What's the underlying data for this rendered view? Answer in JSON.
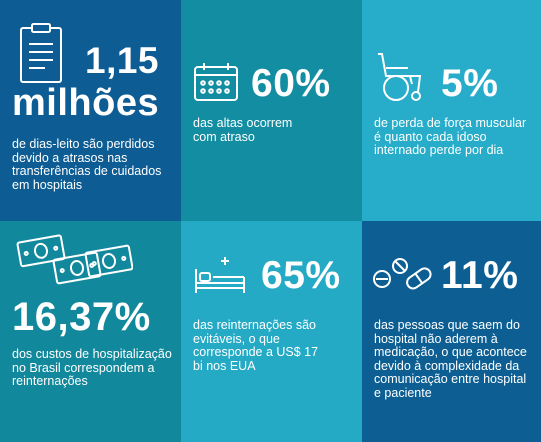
{
  "tiles": [
    {
      "value_line1": "1,15",
      "value_line2": "milhões",
      "text": "de dias-leito são perdidos devido a atrasos nas transferências de cuidados em hospitais",
      "icon": "clipboard-icon",
      "color": "#0d5c93"
    },
    {
      "value": "60%",
      "text": "das altas ocorrem com atraso",
      "icon": "calendar-icon",
      "color": "#128da2"
    },
    {
      "value": "5%",
      "text": "de perda de força muscular é quanto cada idoso internado perde por dia",
      "icon": "wheelchair-icon",
      "color": "#27acc9"
    },
    {
      "value": "16,37%",
      "text": "dos custos de hospitalização no Brasil correspondem a reinternações",
      "icon": "money-icon",
      "color": "#11889c"
    },
    {
      "value": "65%",
      "text": "das reinternações são evitáveis, o que corresponde a US$ 17 bi nos EUA",
      "icon": "hospital-bed-icon",
      "color": "#25aac5"
    },
    {
      "value": "11%",
      "text": "das pessoas que saem do hospital não aderem à medicação, o que acontece devido à complexidade da comunicação entre hospital e paciente",
      "icon": "pills-icon",
      "color": "#0d5f93"
    }
  ]
}
